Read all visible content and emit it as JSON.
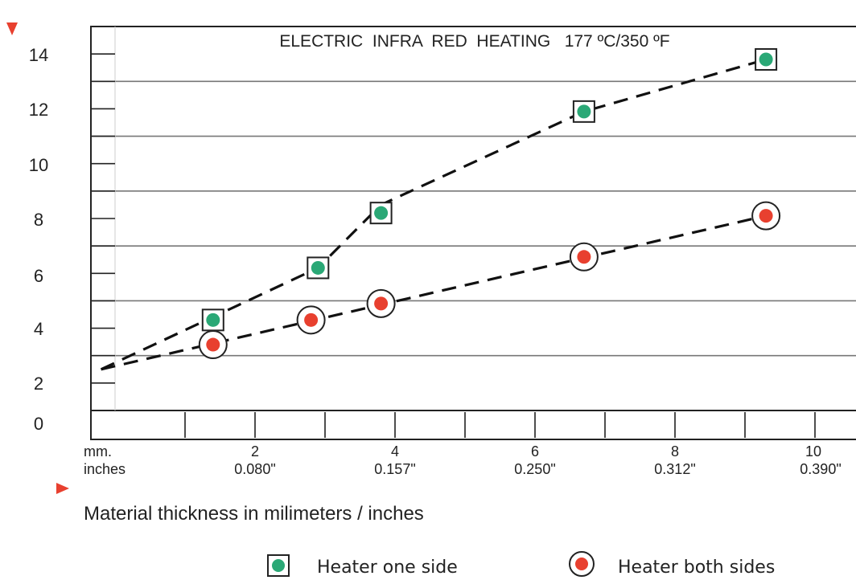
{
  "chart_data": {
    "type": "scatter",
    "title": "ELECTRIC  INFRA  RED  HEATING   177 ºC/350 ºF",
    "xlabel": "Material thickness in milimeters / inches",
    "ylabel": "",
    "xlim": [
      0,
      10.3
    ],
    "ylim": [
      0,
      14
    ],
    "y_ticks": [
      "0",
      "2",
      "4",
      "6",
      "8",
      "10",
      "12",
      "14"
    ],
    "x_tick_labels": [
      {
        "mm": "mm.",
        "inch": "inches"
      },
      {
        "mm": "2",
        "inch": "0.080\""
      },
      {
        "mm": "4",
        "inch": "0.157\""
      },
      {
        "mm": "6",
        "inch": "0.250\""
      },
      {
        "mm": "8",
        "inch": "0.312\""
      },
      {
        "mm": "10",
        "inch": "0.390\""
      }
    ],
    "series": [
      {
        "name": "Heater one side",
        "marker": "square",
        "color": "#2aa876",
        "points": [
          {
            "x": 1.4,
            "y": 3.3
          },
          {
            "x": 2.9,
            "y": 5.2
          },
          {
            "x": 3.8,
            "y": 7.2
          },
          {
            "x": 6.7,
            "y": 10.9
          },
          {
            "x": 9.3,
            "y": 12.8
          }
        ],
        "trend": [
          {
            "x": -0.2,
            "y": 1.5
          },
          {
            "x": 2.9,
            "y": 5.2
          },
          {
            "x": 3.8,
            "y": 7.5
          },
          {
            "x": 6.7,
            "y": 10.9
          },
          {
            "x": 9.3,
            "y": 12.8
          }
        ]
      },
      {
        "name": "Heater both sides",
        "marker": "circle",
        "color": "#e8402f",
        "points": [
          {
            "x": 1.4,
            "y": 2.4
          },
          {
            "x": 2.8,
            "y": 3.3
          },
          {
            "x": 3.8,
            "y": 3.9
          },
          {
            "x": 6.7,
            "y": 5.6
          },
          {
            "x": 9.3,
            "y": 7.1
          }
        ],
        "trend": [
          {
            "x": -0.2,
            "y": 1.5
          },
          {
            "x": 9.3,
            "y": 7.1
          }
        ]
      }
    ],
    "grid": true,
    "legend_position": "bottom"
  }
}
